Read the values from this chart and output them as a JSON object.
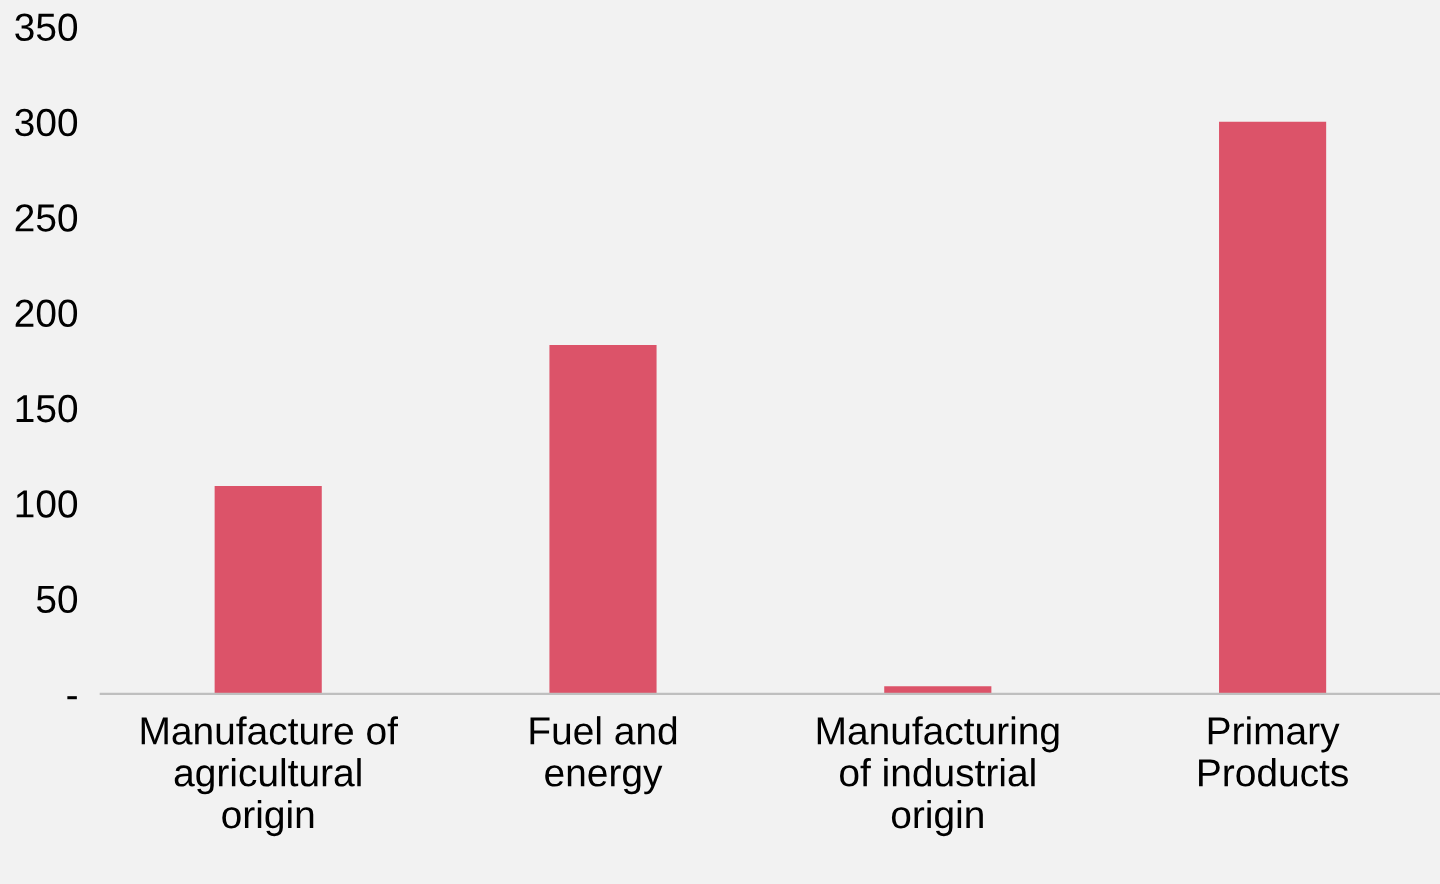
{
  "chart_data": {
    "type": "bar",
    "categories": [
      "Manufacture of\nagricultural\norigin",
      "Fuel and\nenergy",
      "Manufacturing\nof industrial\norigin",
      "Primary\nProducts"
    ],
    "values": [
      109,
      183,
      4,
      300
    ],
    "color": "#dc5369",
    "ylim": [
      0,
      350
    ],
    "yticks": [
      {
        "value": 0,
        "label": "-"
      },
      50,
      100,
      150,
      200,
      250,
      300,
      350
    ],
    "grid": false,
    "legend": false
  }
}
